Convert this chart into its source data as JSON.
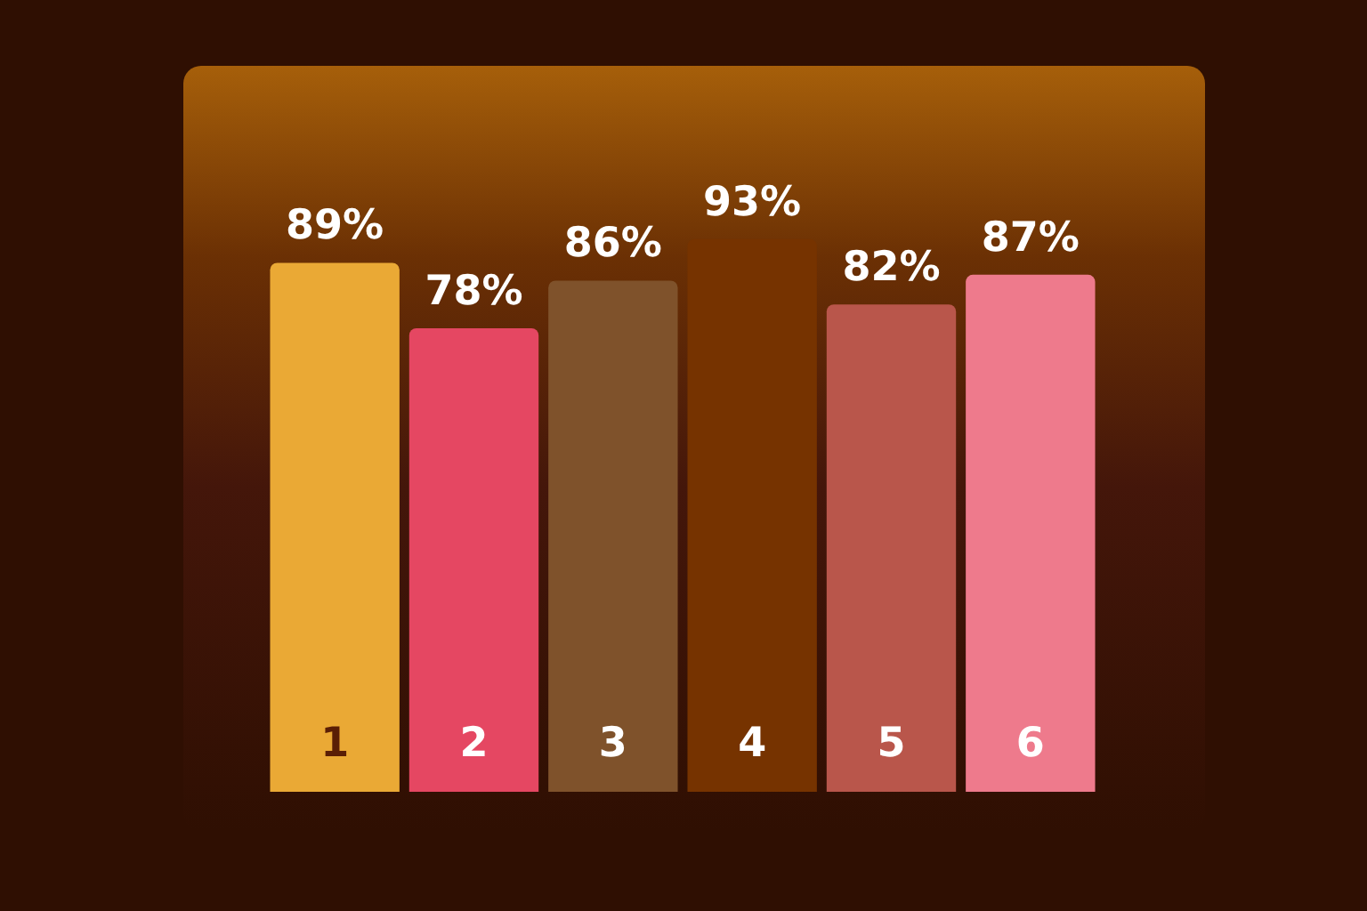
{
  "chart_data": {
    "type": "bar",
    "categories": [
      "1",
      "2",
      "3",
      "4",
      "5",
      "6"
    ],
    "values": [
      89,
      78,
      86,
      93,
      82,
      87
    ],
    "colors": [
      "#eaa935",
      "#e54762",
      "#7f522b",
      "#763300",
      "#b9564b",
      "#ee7a8c"
    ],
    "value_labels": [
      "89%",
      "78%",
      "86%",
      "93%",
      "82%",
      "87%"
    ],
    "legend": false
  }
}
